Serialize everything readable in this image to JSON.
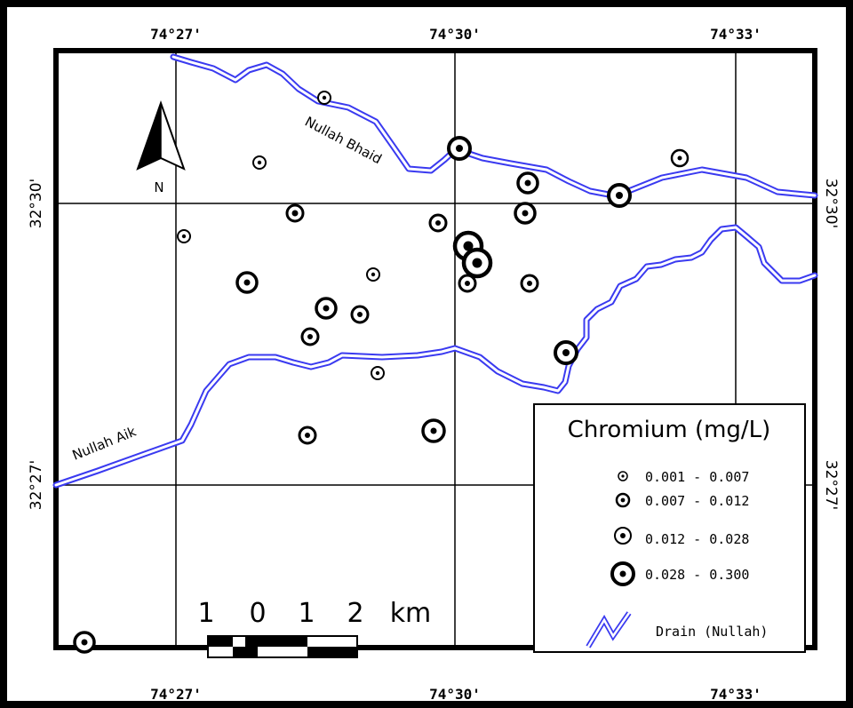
{
  "map": {
    "longitude_labels": [
      "74°27'",
      "74°30'",
      "74°33'"
    ],
    "latitude_labels": [
      "32°30'",
      "32°27'"
    ],
    "north_label": "N",
    "drains": [
      {
        "name": "Nullah Bhaid"
      },
      {
        "name": "Nullah Aik"
      }
    ],
    "scale": {
      "ticks": [
        "1",
        "0",
        "1",
        "2"
      ],
      "unit": "km"
    },
    "legend": {
      "title": "Chromium (mg/L)",
      "classes": [
        {
          "label": "0.001 - 0.007",
          "min": 0.001,
          "max": 0.007
        },
        {
          "label": "0.007 - 0.012",
          "min": 0.007,
          "max": 0.012
        },
        {
          "label": "0.012 - 0.028",
          "min": 0.012,
          "max": 0.028
        },
        {
          "label": "0.028 - 0.300",
          "min": 0.028,
          "max": 0.3
        }
      ],
      "drain_label": "Drain (Nullah)"
    },
    "colors": {
      "drain": "#3a3af0",
      "frame": "#000000",
      "background": "#ffffff"
    }
  }
}
